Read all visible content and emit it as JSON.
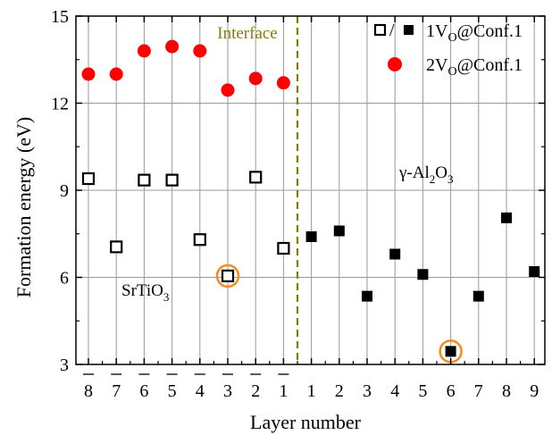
{
  "chart_data": {
    "type": "scatter",
    "xlabel": "Layer number",
    "ylabel": "Formation energy (eV)",
    "ylim": [
      3,
      15
    ],
    "yticks": [
      "3",
      "6",
      "9",
      "12",
      "15"
    ],
    "x_categories": [
      "8",
      "7",
      "6",
      "5",
      "4",
      "3",
      "2",
      "1",
      "1",
      "2",
      "3",
      "4",
      "5",
      "6",
      "7",
      "8",
      "9"
    ],
    "x_overbar": [
      true,
      true,
      true,
      true,
      true,
      true,
      true,
      true,
      false,
      false,
      false,
      false,
      false,
      false,
      false,
      false,
      false
    ],
    "grid": true,
    "legend_position": "top-right",
    "legend": [
      {
        "text": "1V_O@Conf.1",
        "marker": "square open/filled"
      },
      {
        "text": "2V_O@Conf.1",
        "marker": "circle filled"
      }
    ],
    "series": [
      {
        "name": "1V_O@Conf.1 (SrTiO3, open squares)",
        "marker": "open-square",
        "x_index": [
          0,
          1,
          2,
          3,
          4,
          5,
          6,
          7
        ],
        "values": [
          9.4,
          7.05,
          9.35,
          9.35,
          7.3,
          6.05,
          9.45,
          7.0
        ]
      },
      {
        "name": "1V_O@Conf.1 (γ-Al2O3, filled squares)",
        "marker": "filled-square",
        "x_index": [
          8,
          9,
          10,
          11,
          12,
          13,
          14,
          15,
          16
        ],
        "values": [
          7.4,
          7.6,
          5.35,
          6.8,
          6.1,
          3.45,
          5.35,
          8.05,
          6.2
        ]
      },
      {
        "name": "2V_O@Conf.1",
        "marker": "circle",
        "x_index": [
          0,
          1,
          2,
          3,
          4,
          5,
          6,
          7
        ],
        "values": [
          13.0,
          13.0,
          13.8,
          13.95,
          13.8,
          12.45,
          12.85,
          12.7
        ]
      }
    ],
    "highlighted": [
      {
        "x_index": 5,
        "value": 6.05
      },
      {
        "x_index": 13,
        "value": 3.45
      }
    ],
    "interface_label": "Interface",
    "interface_after_index": 7,
    "region_labels": {
      "left": "SrTiO3",
      "right": "γ-Al2O3"
    },
    "colors": {
      "circle": "#ff0000",
      "square": "#000000",
      "highlight": "#f28c1e",
      "interface": "#808000",
      "grid": "#9a9a9a"
    }
  }
}
